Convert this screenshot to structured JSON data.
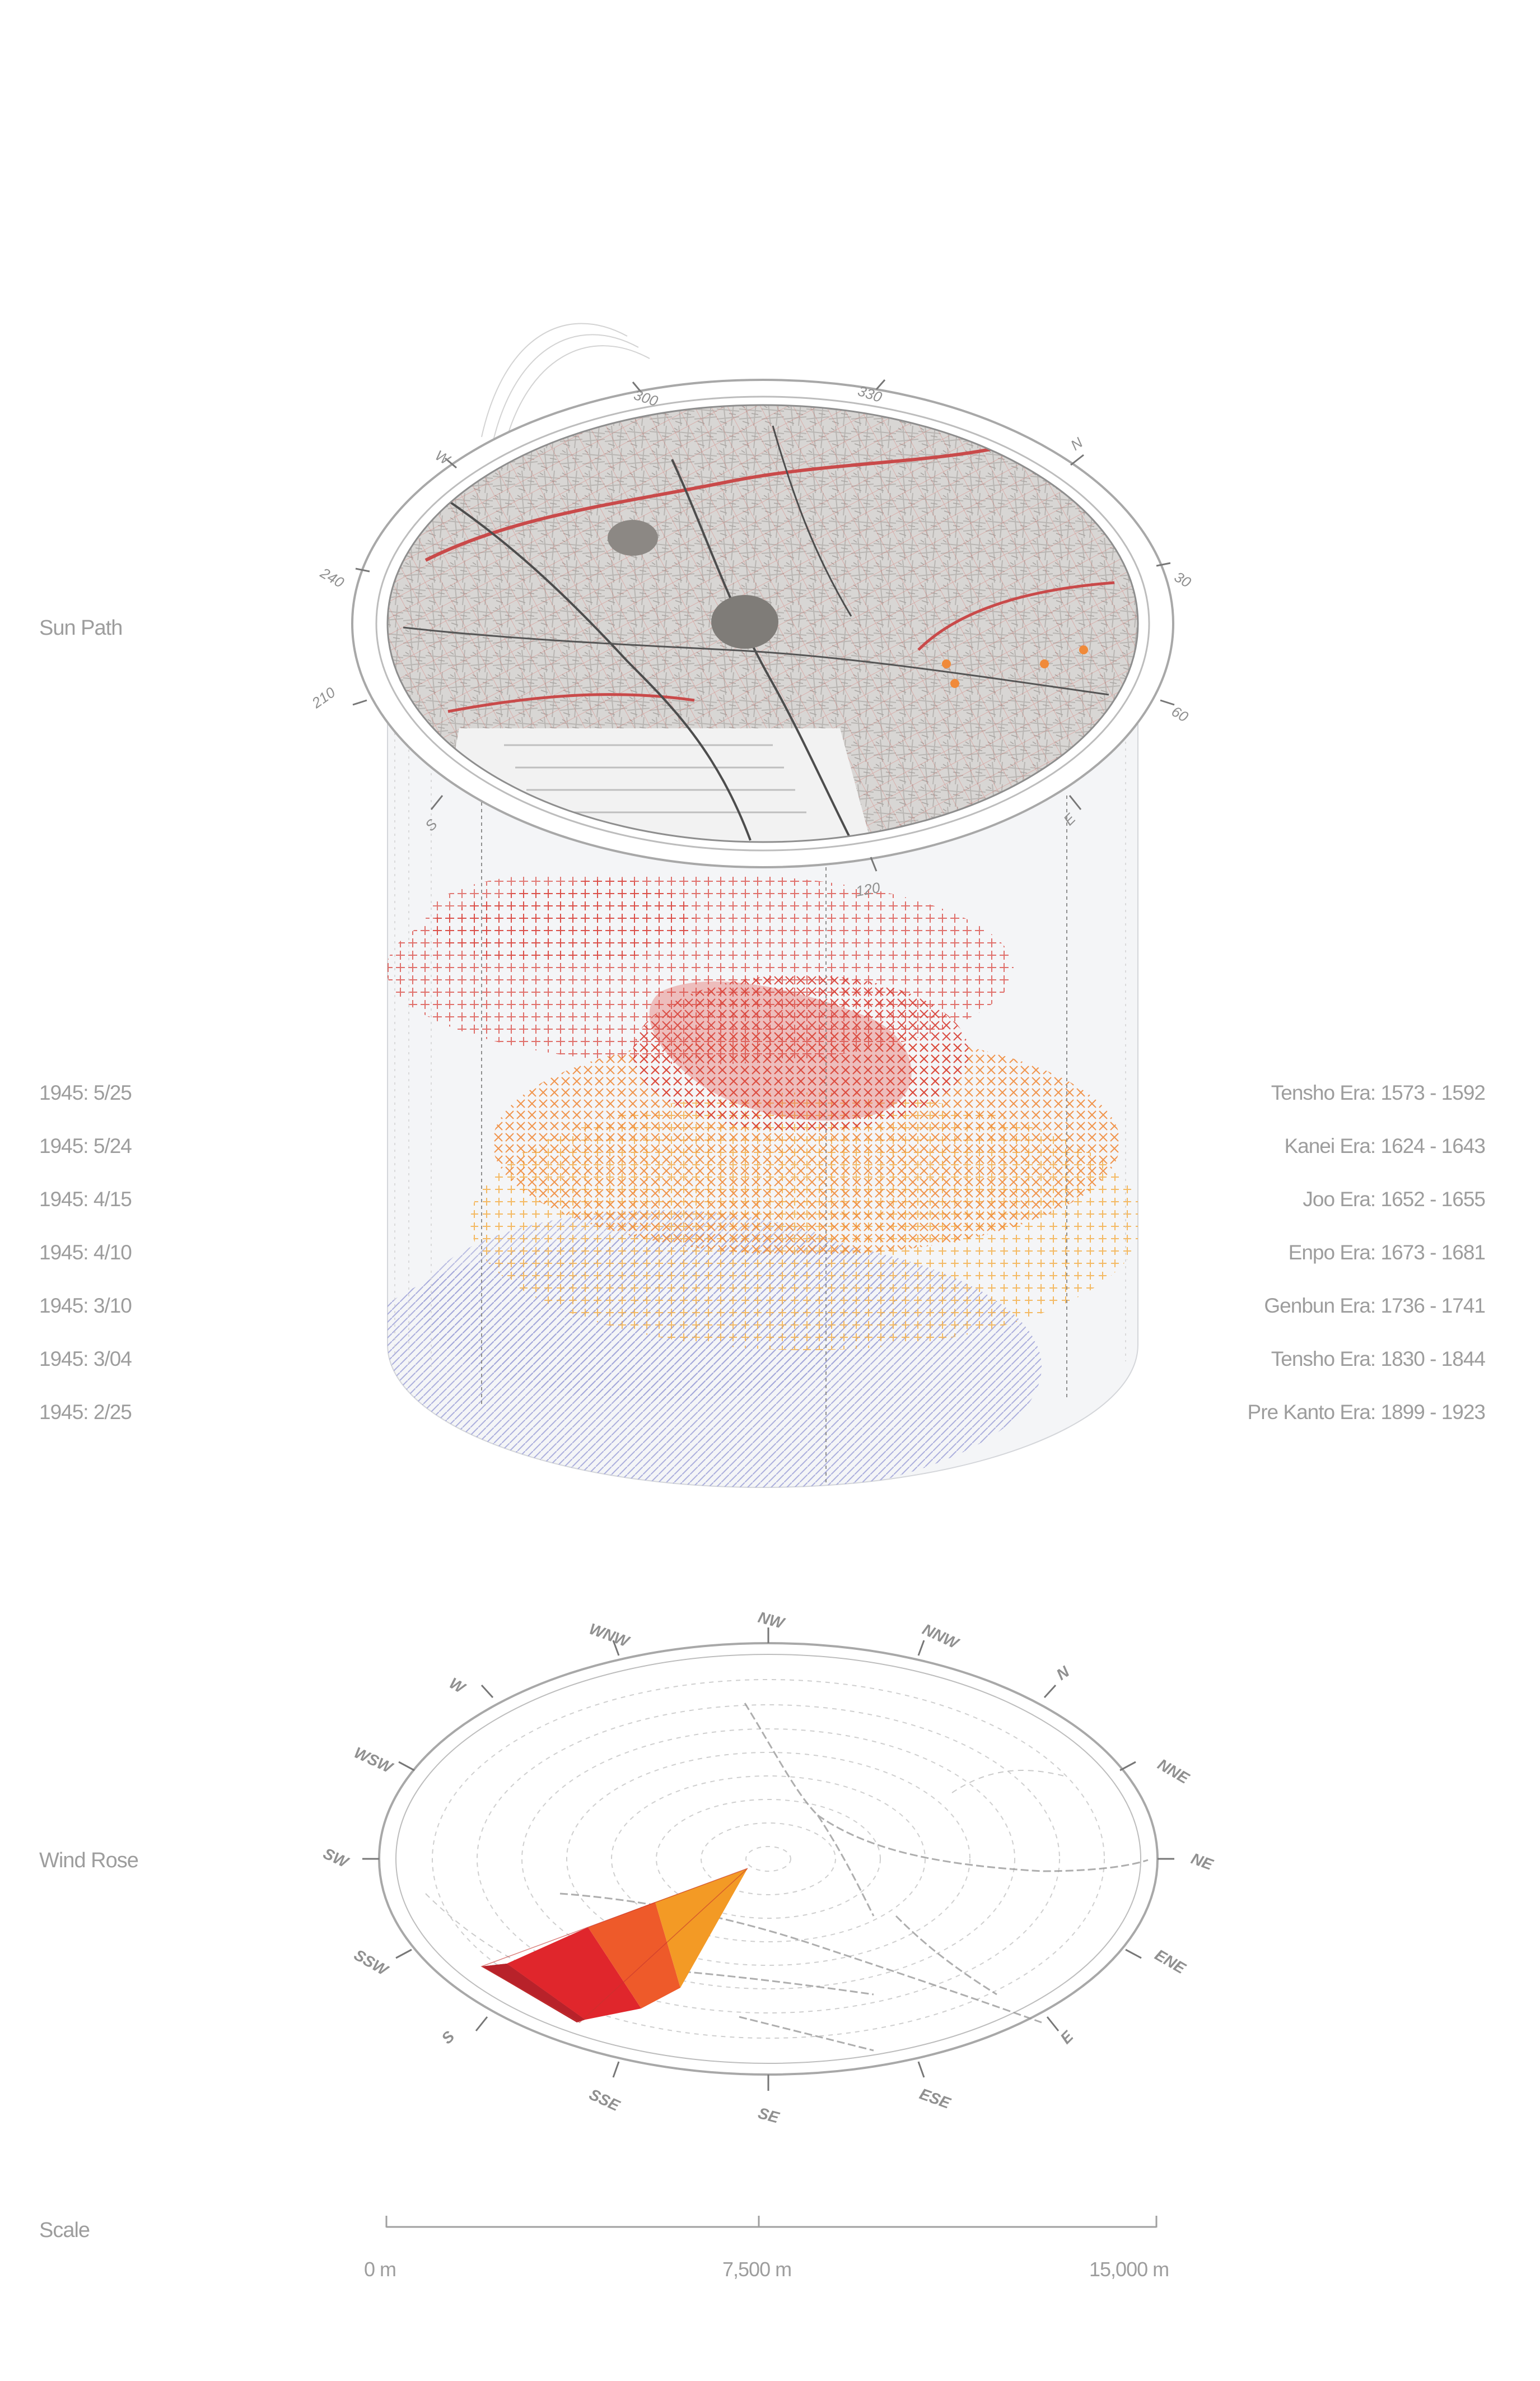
{
  "labels": {
    "sun_path": "Sun Path",
    "wind_rose": "Wind Rose",
    "scale": "Scale"
  },
  "air_raid_dates": [
    "1945: 5/25",
    "1945: 5/24",
    "1945: 4/15",
    "1945: 4/10",
    "1945: 3/10",
    "1945: 3/04",
    "1945: 2/25"
  ],
  "eras": [
    "Tensho Era: 1573 - 1592",
    "Kanei Era: 1624 - 1643",
    "Joo Era: 1652 - 1655",
    "Enpo Era: 1673 - 1681",
    "Genbun Era: 1736 - 1741",
    "Tensho Era: 1830 - 1844",
    "Pre Kanto Era: 1899 - 1923"
  ],
  "sun_path_degrees": [
    "300",
    "330",
    "N",
    "W",
    "240",
    "30",
    "210",
    "60",
    "S",
    "E",
    "120"
  ],
  "wind_directions": [
    "NW",
    "NNW",
    "WNW",
    "N",
    "W",
    "NNE",
    "WSW",
    "NE",
    "SW",
    "ENE",
    "SSW",
    "E",
    "S",
    "ESE",
    "SSE",
    "SE"
  ],
  "scale": {
    "ticks": [
      "0 m",
      "7,500 m",
      "15,000 m"
    ]
  },
  "colors": {
    "era_red": "#d9443c",
    "era_orange": "#f08a3a",
    "era_yellow": "#f4b04a",
    "era_lilac": "#9fa3d8",
    "wind_dark": "#b8222a",
    "wind_red": "#e0262c",
    "wind_orange": "#ee5a2a",
    "wind_light": "#f39a25"
  }
}
